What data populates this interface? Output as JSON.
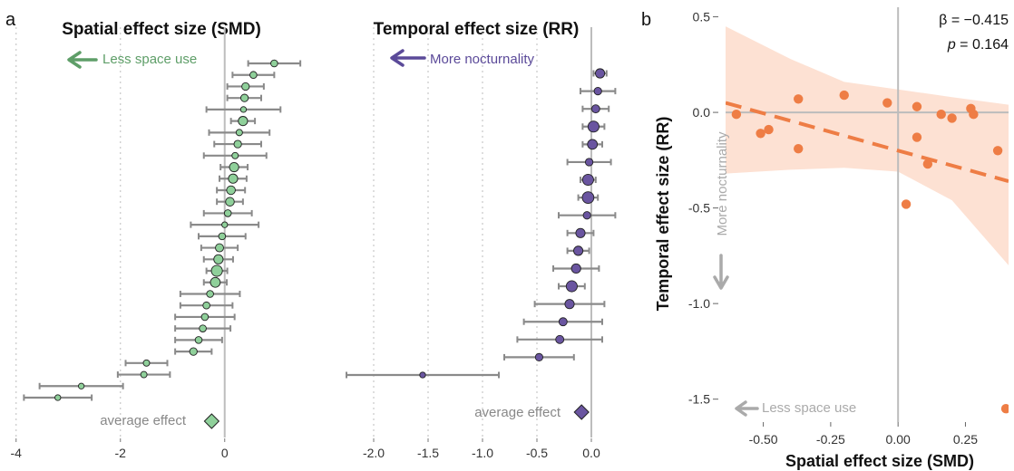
{
  "colors": {
    "spatial": "#8fd09a",
    "spatial_text": "#5e9e68",
    "temporal": "#6a55a0",
    "temporal_text": "#5b4a99",
    "orange": "#ee7d45",
    "band": "#fde1d3",
    "errbar": "#8a8a8a",
    "avg_text": "#888888",
    "annot_grey": "#aaaaaa"
  },
  "panel_labels": {
    "a": "a",
    "b": "b"
  },
  "chart_data": [
    {
      "id": "spatial",
      "type": "forest",
      "title": "Spatial effect size (SMD)",
      "annotation": "Less space use",
      "annotation_icon": "arrow-left-icon",
      "average_label": "average effect",
      "xlim": [
        -4.1,
        1.5
      ],
      "xticks": [
        -4,
        -2,
        0
      ],
      "tick_labels": [
        "-4",
        "-2",
        "0"
      ],
      "rows": [
        {
          "est": 0.95,
          "lo": 0.45,
          "hi": 1.45,
          "w": 1.2
        },
        {
          "est": 0.55,
          "lo": 0.15,
          "hi": 0.95,
          "w": 1.2
        },
        {
          "est": 0.4,
          "lo": 0.05,
          "hi": 0.75,
          "w": 1.3
        },
        {
          "est": 0.38,
          "lo": 0.05,
          "hi": 0.7,
          "w": 1.3
        },
        {
          "est": 0.36,
          "lo": -0.35,
          "hi": 1.07,
          "w": 1.0
        },
        {
          "est": 0.35,
          "lo": 0.12,
          "hi": 0.58,
          "w": 1.6
        },
        {
          "est": 0.28,
          "lo": -0.3,
          "hi": 0.86,
          "w": 1.1
        },
        {
          "est": 0.25,
          "lo": -0.2,
          "hi": 0.7,
          "w": 1.3
        },
        {
          "est": 0.2,
          "lo": -0.4,
          "hi": 0.8,
          "w": 1.1
        },
        {
          "est": 0.18,
          "lo": -0.08,
          "hi": 0.44,
          "w": 1.6
        },
        {
          "est": 0.16,
          "lo": -0.1,
          "hi": 0.42,
          "w": 1.6
        },
        {
          "est": 0.12,
          "lo": -0.15,
          "hi": 0.39,
          "w": 1.5
        },
        {
          "est": 0.1,
          "lo": -0.15,
          "hi": 0.35,
          "w": 1.5
        },
        {
          "est": 0.06,
          "lo": -0.4,
          "hi": 0.52,
          "w": 1.2
        },
        {
          "est": 0.0,
          "lo": -0.65,
          "hi": 0.65,
          "w": 1.0
        },
        {
          "est": -0.05,
          "lo": -0.5,
          "hi": 0.4,
          "w": 1.2
        },
        {
          "est": -0.1,
          "lo": -0.45,
          "hi": 0.25,
          "w": 1.4
        },
        {
          "est": -0.12,
          "lo": -0.4,
          "hi": 0.16,
          "w": 1.6
        },
        {
          "est": -0.15,
          "lo": -0.35,
          "hi": 0.05,
          "w": 1.9
        },
        {
          "est": -0.18,
          "lo": -0.4,
          "hi": 0.04,
          "w": 1.7
        },
        {
          "est": -0.28,
          "lo": -0.85,
          "hi": 0.29,
          "w": 1.2
        },
        {
          "est": -0.35,
          "lo": -0.85,
          "hi": 0.15,
          "w": 1.2
        },
        {
          "est": -0.38,
          "lo": -0.95,
          "hi": 0.19,
          "w": 1.2
        },
        {
          "est": -0.42,
          "lo": -0.95,
          "hi": 0.11,
          "w": 1.2
        },
        {
          "est": -0.5,
          "lo": -0.95,
          "hi": -0.05,
          "w": 1.2
        },
        {
          "est": -0.6,
          "lo": -0.95,
          "hi": -0.25,
          "w": 1.3
        },
        {
          "est": -1.5,
          "lo": -1.9,
          "hi": -1.1,
          "w": 1.1
        },
        {
          "est": -1.55,
          "lo": -2.05,
          "hi": -1.05,
          "w": 1.1
        },
        {
          "est": -2.75,
          "lo": -3.55,
          "hi": -1.95,
          "w": 1.0
        },
        {
          "est": -3.2,
          "lo": -3.85,
          "hi": -2.55,
          "w": 1.0
        }
      ],
      "average": {
        "est": -0.25,
        "lo": -0.37,
        "hi": -0.13
      }
    },
    {
      "id": "temporal",
      "type": "forest",
      "title": "Temporal effect size (RR)",
      "annotation": "More nocturnality",
      "annotation_icon": "arrow-left-icon",
      "average_label": "average effect",
      "xlim": [
        -2.35,
        0.15
      ],
      "xticks": [
        -2.0,
        -1.5,
        -1.0,
        -0.5,
        0.0
      ],
      "tick_labels": [
        "-2.0",
        "-1.5",
        "-1.0",
        "-0.5",
        "0.0"
      ],
      "rows": [
        {
          "est": 0.08,
          "lo": 0.02,
          "hi": 0.14,
          "w": 1.6
        },
        {
          "est": 0.06,
          "lo": -0.1,
          "hi": 0.22,
          "w": 1.3
        },
        {
          "est": 0.04,
          "lo": -0.08,
          "hi": 0.16,
          "w": 1.4
        },
        {
          "est": 0.02,
          "lo": -0.08,
          "hi": 0.12,
          "w": 1.9
        },
        {
          "est": 0.01,
          "lo": -0.08,
          "hi": 0.1,
          "w": 1.7
        },
        {
          "est": -0.02,
          "lo": -0.22,
          "hi": 0.18,
          "w": 1.3
        },
        {
          "est": -0.03,
          "lo": -0.1,
          "hi": 0.04,
          "w": 1.9
        },
        {
          "est": -0.03,
          "lo": -0.12,
          "hi": 0.06,
          "w": 2.0
        },
        {
          "est": -0.04,
          "lo": -0.3,
          "hi": 0.22,
          "w": 1.3
        },
        {
          "est": -0.1,
          "lo": -0.22,
          "hi": 0.02,
          "w": 1.6
        },
        {
          "est": -0.12,
          "lo": -0.22,
          "hi": -0.02,
          "w": 1.6
        },
        {
          "est": -0.14,
          "lo": -0.35,
          "hi": 0.07,
          "w": 1.6
        },
        {
          "est": -0.18,
          "lo": -0.3,
          "hi": -0.06,
          "w": 1.9
        },
        {
          "est": -0.2,
          "lo": -0.52,
          "hi": 0.12,
          "w": 1.6
        },
        {
          "est": -0.26,
          "lo": -0.62,
          "hi": 0.1,
          "w": 1.4
        },
        {
          "est": -0.29,
          "lo": -0.68,
          "hi": 0.1,
          "w": 1.4
        },
        {
          "est": -0.48,
          "lo": -0.8,
          "hi": -0.16,
          "w": 1.3
        },
        {
          "est": -1.55,
          "lo": -2.25,
          "hi": -0.85,
          "w": 1.0
        }
      ],
      "average": {
        "est": -0.09,
        "lo": -0.13,
        "hi": -0.05
      }
    },
    {
      "id": "regression",
      "type": "scatter",
      "xlabel": "Spatial effect size (SMD)",
      "ylabel": "Temporal effect size (RR)",
      "xlim": [
        -0.64,
        0.41
      ],
      "ylim": [
        -1.62,
        0.55
      ],
      "xticks": [
        -0.5,
        -0.25,
        0.0,
        0.25
      ],
      "xtick_labels": [
        "-0.50",
        "-0.25",
        "0.00",
        "0.25"
      ],
      "yticks": [
        0.5,
        0.0,
        -0.5,
        -1.0,
        -1.5
      ],
      "ytick_labels": [
        "0.5",
        "0.0",
        "-0.5",
        "-1.0",
        "-1.5"
      ],
      "beta_text": "β = −0.415",
      "p_label": "p",
      "p_text": " = 0.164",
      "x_annotation": "Less space use",
      "y_annotation": "More nocturnality",
      "points": [
        {
          "x": -0.6,
          "y": -0.01
        },
        {
          "x": -0.51,
          "y": -0.11
        },
        {
          "x": -0.48,
          "y": -0.09
        },
        {
          "x": -0.37,
          "y": 0.07
        },
        {
          "x": -0.37,
          "y": -0.19
        },
        {
          "x": -0.2,
          "y": 0.09
        },
        {
          "x": -0.04,
          "y": 0.05
        },
        {
          "x": 0.03,
          "y": -0.48
        },
        {
          "x": 0.07,
          "y": 0.03
        },
        {
          "x": 0.07,
          "y": -0.13
        },
        {
          "x": 0.11,
          "y": -0.27
        },
        {
          "x": 0.16,
          "y": -0.01
        },
        {
          "x": 0.2,
          "y": -0.03
        },
        {
          "x": 0.27,
          "y": 0.02
        },
        {
          "x": 0.28,
          "y": -0.01
        },
        {
          "x": 0.37,
          "y": -0.2
        },
        {
          "x": 0.4,
          "y": -1.55
        }
      ],
      "fit": {
        "x": [
          -0.64,
          0.41
        ],
        "y": [
          0.05,
          -0.36
        ]
      },
      "band": {
        "x": [
          -0.64,
          -0.4,
          -0.2,
          0.0,
          0.2,
          0.41
        ],
        "upper": [
          0.45,
          0.28,
          0.16,
          0.12,
          0.08,
          0.04
        ],
        "lower": [
          -0.32,
          -0.3,
          -0.29,
          -0.31,
          -0.46,
          -0.8
        ]
      }
    }
  ]
}
